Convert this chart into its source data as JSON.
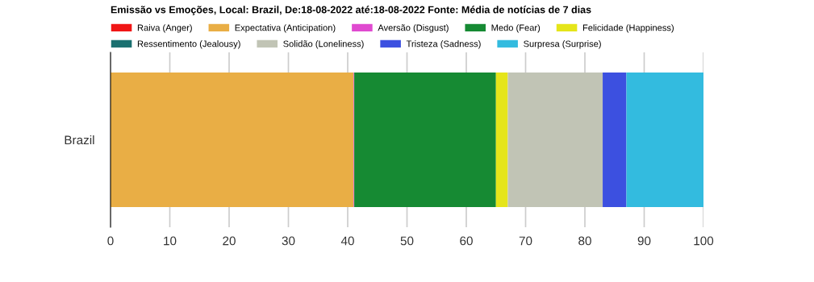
{
  "chart_data": {
    "type": "bar",
    "orientation": "horizontal",
    "stacked": true,
    "title": "Emissão vs Emoções, Local: Brazil, De:18-08-2022 até:18-08-2022 Fonte: Média de notícias de 7 dias",
    "categories": [
      "Brazil"
    ],
    "series": [
      {
        "name": "Raiva (Anger)",
        "color": "#f01616",
        "values": [
          0
        ]
      },
      {
        "name": "Expectativa (Anticipation)",
        "color": "#e9ae45",
        "values": [
          41
        ]
      },
      {
        "name": "Aversão (Disgust)",
        "color": "#e04ad0",
        "values": [
          0.1
        ]
      },
      {
        "name": "Medo (Fear)",
        "color": "#168a33",
        "values": [
          23.9
        ]
      },
      {
        "name": "Felicidade (Happiness)",
        "color": "#e5e51a",
        "values": [
          2
        ]
      },
      {
        "name": "Ressentimento (Jealousy)",
        "color": "#1a7070",
        "values": [
          0
        ]
      },
      {
        "name": "Solidão (Loneliness)",
        "color": "#c1c4b5",
        "values": [
          16
        ]
      },
      {
        "name": "Tristeza (Sadness)",
        "color": "#3c50e0",
        "values": [
          4
        ]
      },
      {
        "name": "Surpresa (Surprise)",
        "color": "#33bbdf",
        "values": [
          13
        ]
      }
    ],
    "xlim": [
      0,
      100
    ],
    "xticks": [
      0,
      10,
      20,
      30,
      40,
      50,
      60,
      70,
      80,
      90,
      100
    ],
    "grid": "x",
    "legend": "top"
  }
}
